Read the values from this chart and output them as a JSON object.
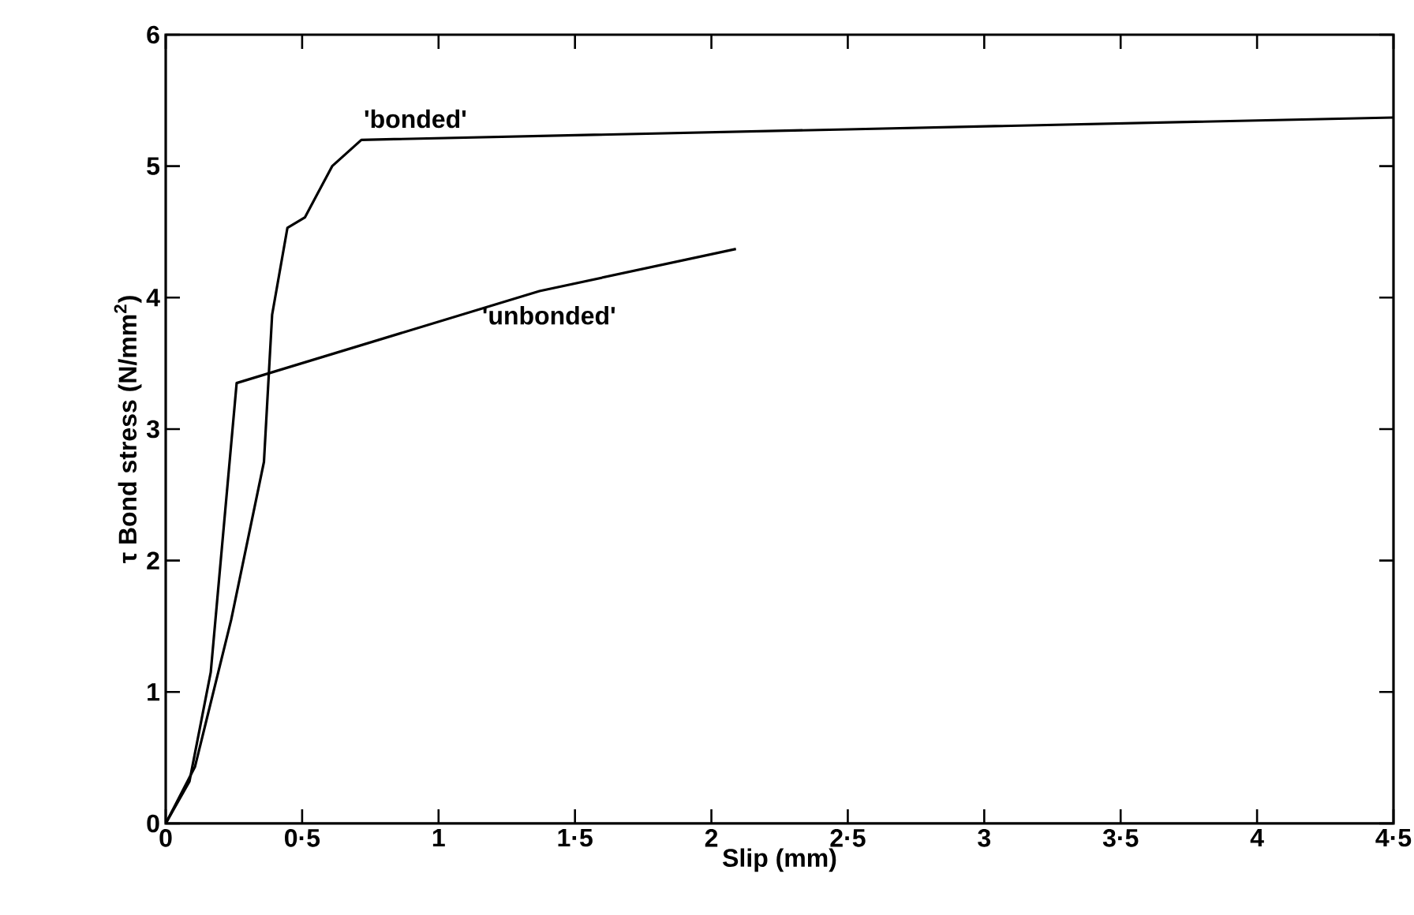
{
  "chart_data": {
    "type": "line",
    "xlabel": "Slip (mm)",
    "ylabel": "τ Bond stress (N/mm$^{2}$)",
    "xlim": [
      0,
      4.5
    ],
    "ylim": [
      0,
      6
    ],
    "xticks": [
      0,
      {
        "value": 0.5,
        "label": "0·5"
      },
      1,
      {
        "value": 1.5,
        "label": "1·5"
      },
      2,
      {
        "value": 2.5,
        "label": "2·5"
      },
      3,
      {
        "value": 3.5,
        "label": "3·5"
      },
      4,
      {
        "value": 4.5,
        "label": "4·5"
      }
    ],
    "yticks": [
      0,
      1,
      2,
      3,
      4,
      5,
      6
    ],
    "grid": false,
    "legend": false,
    "marker": "none",
    "line_style": "solid",
    "series": [
      {
        "name": "'bonded'",
        "color": "#000000",
        "x": [
          0,
          0.107,
          0.24,
          0.36,
          0.39,
          0.446,
          0.51,
          0.61,
          0.717,
          2.5,
          4.5
        ],
        "values": [
          0,
          0.43,
          1.55,
          2.75,
          3.87,
          4.53,
          4.61,
          5.0,
          5.2,
          5.28,
          5.37
        ]
      },
      {
        "name": "'unbonded'",
        "color": "#000000",
        "x": [
          0,
          0.087,
          0.165,
          0.26,
          1.37,
          2.09
        ],
        "values": [
          0,
          0.32,
          1.15,
          3.35,
          4.05,
          4.37
        ]
      }
    ]
  }
}
